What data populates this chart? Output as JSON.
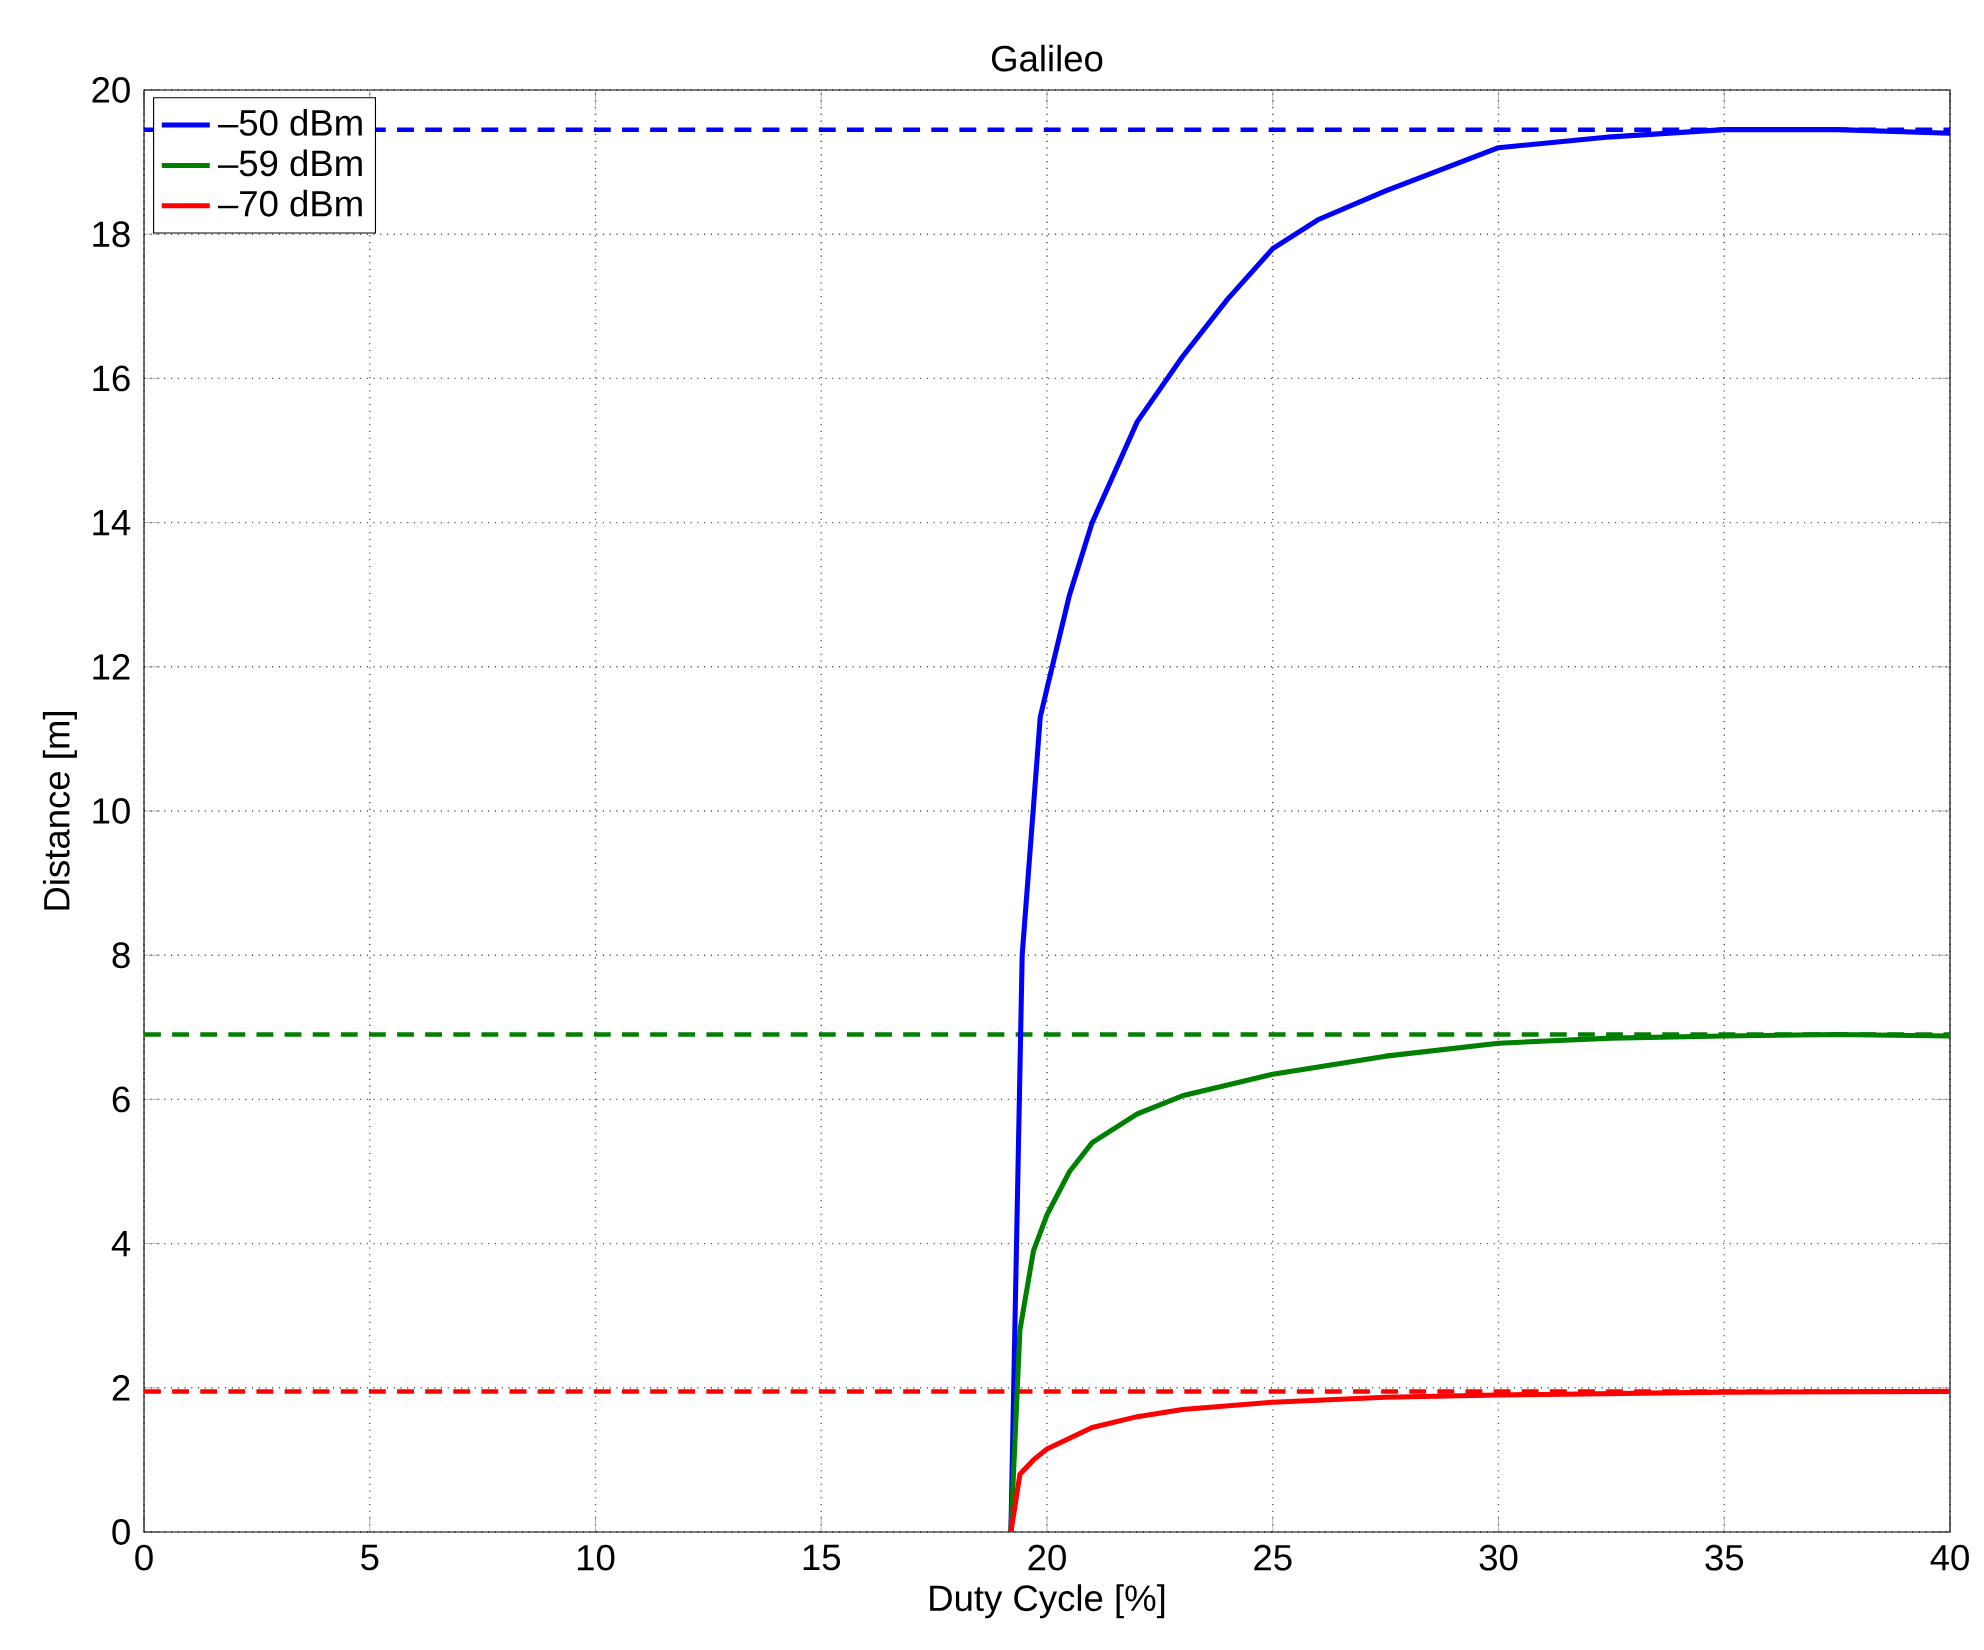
{
  "chart_data": {
    "type": "line",
    "title": "Galileo",
    "xlabel": "Duty Cycle [%]",
    "ylabel": "Distance [m]",
    "xlim": [
      0,
      40
    ],
    "ylim": [
      0,
      20
    ],
    "xticks": [
      0,
      5,
      10,
      15,
      20,
      25,
      30,
      35,
      40
    ],
    "yticks": [
      0,
      2,
      4,
      6,
      8,
      10,
      12,
      14,
      16,
      18,
      20
    ],
    "grid": true,
    "legend": "top left",
    "marker": "none",
    "line_style": "solid",
    "series": [
      {
        "name": "–50 dBm",
        "color": "#0000ff",
        "x": [
          19.2,
          19.45,
          19.85,
          20,
          20.5,
          21,
          22,
          23,
          24,
          25,
          26,
          27.5,
          30,
          32.5,
          35,
          37.5,
          40
        ],
        "values": [
          0,
          8,
          11.3,
          11.7,
          13,
          14,
          15.4,
          16.3,
          17.1,
          17.8,
          18.2,
          18.6,
          19.2,
          19.35,
          19.45,
          19.45,
          19.4
        ]
      },
      {
        "name": "–59 dBm",
        "color": "#008000",
        "x": [
          19.2,
          19.4,
          19.7,
          20,
          20.5,
          21,
          22,
          23,
          25,
          27.5,
          30,
          32.5,
          35,
          37.5,
          40
        ],
        "values": [
          0,
          2.8,
          3.9,
          4.4,
          5.0,
          5.4,
          5.8,
          6.05,
          6.35,
          6.6,
          6.78,
          6.85,
          6.88,
          6.9,
          6.88
        ]
      },
      {
        "name": "–70 dBm",
        "color": "#ff0000",
        "x": [
          19.2,
          19.4,
          19.7,
          20,
          21,
          22,
          23,
          25,
          27.5,
          30,
          35,
          40
        ],
        "values": [
          0,
          0.8,
          1.0,
          1.15,
          1.45,
          1.6,
          1.7,
          1.8,
          1.87,
          1.9,
          1.94,
          1.95
        ]
      }
    ],
    "ref_lines": [
      {
        "axis": "y",
        "value": 19.45,
        "color": "#0000ff",
        "line_style": "dashed"
      },
      {
        "axis": "y",
        "value": 6.9,
        "color": "#008000",
        "line_style": "dashed"
      },
      {
        "axis": "y",
        "value": 1.95,
        "color": "#ff0000",
        "line_style": "dashed"
      }
    ]
  }
}
